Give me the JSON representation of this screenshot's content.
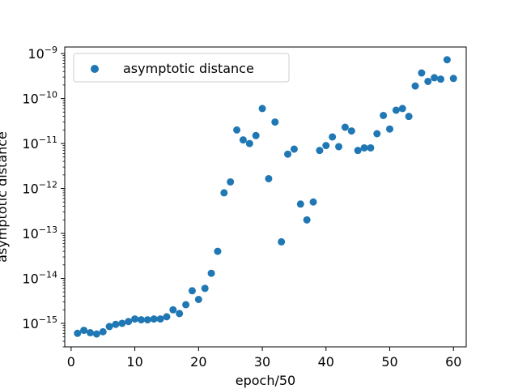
{
  "chart_data": {
    "type": "scatter",
    "title": "",
    "xlabel": "epoch/50",
    "ylabel": "asymptotic distance",
    "xlim": [
      -1,
      62
    ],
    "ylim": [
      3e-16,
      1.4e-09
    ],
    "yscale": "log",
    "grid": false,
    "legend_position": "top-left",
    "x_ticks": [
      {
        "value": 0,
        "label": "0"
      },
      {
        "value": 10,
        "label": "10"
      },
      {
        "value": 20,
        "label": "20"
      },
      {
        "value": 30,
        "label": "30"
      },
      {
        "value": 40,
        "label": "40"
      },
      {
        "value": 50,
        "label": "50"
      },
      {
        "value": 60,
        "label": "60"
      }
    ],
    "y_ticks": [
      {
        "value": 1e-15,
        "base": "10",
        "exp": "−15"
      },
      {
        "value": 1e-14,
        "base": "10",
        "exp": "−14"
      },
      {
        "value": 1e-13,
        "base": "10",
        "exp": "−13"
      },
      {
        "value": 1e-12,
        "base": "10",
        "exp": "−12"
      },
      {
        "value": 1e-11,
        "base": "10",
        "exp": "−11"
      },
      {
        "value": 1e-10,
        "base": "10",
        "exp": "−10"
      },
      {
        "value": 1e-09,
        "base": "10",
        "exp": "−9"
      }
    ],
    "series": [
      {
        "name": "asymptotic distance",
        "color": "#1f77b4",
        "marker": "circle",
        "points": [
          [
            1,
            6e-16
          ],
          [
            2,
            7e-16
          ],
          [
            3,
            6.2e-16
          ],
          [
            4,
            5.8e-16
          ],
          [
            5,
            6.5e-16
          ],
          [
            6,
            8.5e-16
          ],
          [
            7,
            9.5e-16
          ],
          [
            8,
            1e-15
          ],
          [
            9,
            1.1e-15
          ],
          [
            10,
            1.25e-15
          ],
          [
            11,
            1.2e-15
          ],
          [
            12,
            1.2e-15
          ],
          [
            13,
            1.25e-15
          ],
          [
            14,
            1.25e-15
          ],
          [
            15,
            1.4e-15
          ],
          [
            16,
            2e-15
          ],
          [
            17,
            1.65e-15
          ],
          [
            18,
            2.6e-15
          ],
          [
            19,
            5.3e-15
          ],
          [
            20,
            3.4e-15
          ],
          [
            21,
            6e-15
          ],
          [
            22,
            1.3e-14
          ],
          [
            23,
            4e-14
          ],
          [
            24,
            8e-13
          ],
          [
            25,
            1.4e-12
          ],
          [
            26,
            2e-11
          ],
          [
            27,
            1.2e-11
          ],
          [
            28,
            1e-11
          ],
          [
            29,
            1.5e-11
          ],
          [
            30,
            6e-11
          ],
          [
            31,
            1.65e-12
          ],
          [
            32,
            3e-11
          ],
          [
            33,
            6.5e-14
          ],
          [
            34,
            5.8e-12
          ],
          [
            35,
            7.5e-12
          ],
          [
            36,
            4.5e-13
          ],
          [
            37,
            2e-13
          ],
          [
            38,
            5e-13
          ],
          [
            39,
            7e-12
          ],
          [
            40,
            9e-12
          ],
          [
            41,
            1.4e-11
          ],
          [
            42,
            8.5e-12
          ],
          [
            43,
            2.3e-11
          ],
          [
            44,
            1.9e-11
          ],
          [
            45,
            7e-12
          ],
          [
            46,
            8e-12
          ],
          [
            47,
            8e-12
          ],
          [
            48,
            1.65e-11
          ],
          [
            49,
            4.2e-11
          ],
          [
            50,
            2.1e-11
          ],
          [
            51,
            5.5e-11
          ],
          [
            52,
            6e-11
          ],
          [
            53,
            4e-11
          ],
          [
            54,
            1.9e-10
          ],
          [
            55,
            3.7e-10
          ],
          [
            56,
            2.4e-10
          ],
          [
            57,
            2.9e-10
          ],
          [
            58,
            2.7e-10
          ],
          [
            59,
            7.3e-10
          ],
          [
            60,
            2.8e-10
          ]
        ]
      }
    ]
  }
}
